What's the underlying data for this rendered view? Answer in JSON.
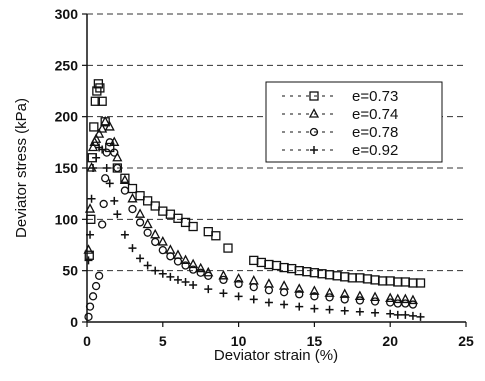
{
  "chart_data": {
    "type": "scatter",
    "xlabel": "Deviator strain (%)",
    "ylabel": "Deviator stress (kPa)",
    "xlim": [
      0,
      25
    ],
    "ylim": [
      0,
      300
    ],
    "xticks": [
      "0",
      "5",
      "10",
      "15",
      "20",
      "25"
    ],
    "yticks": [
      "0",
      "50",
      "100",
      "150",
      "200",
      "250",
      "300"
    ],
    "grid": "horizontal dashed",
    "legend_position": "top-right",
    "colors": {
      "marker": "#111111",
      "axis": "#111111",
      "grid": "#333333"
    },
    "series": [
      {
        "name": "e=0.73",
        "marker": "square",
        "x": [
          0.15,
          0.25,
          0.35,
          0.45,
          0.55,
          0.65,
          0.75,
          0.85,
          1.0,
          1.2,
          1.5,
          2.0,
          2.5,
          3.0,
          3.5,
          4.0,
          4.5,
          5.0,
          5.5,
          6.0,
          6.5,
          7.0,
          8.0,
          8.5,
          9.3,
          11.0,
          11.5,
          12.0,
          12.5,
          13.0,
          13.5,
          14.0,
          14.5,
          15.0,
          15.5,
          16.0,
          16.5,
          17.0,
          17.5,
          18.0,
          18.5,
          19.0,
          19.5,
          20.0,
          20.5,
          21.0,
          21.5,
          22.0
        ],
        "y": [
          65,
          100,
          160,
          190,
          215,
          225,
          232,
          228,
          215,
          195,
          170,
          150,
          140,
          130,
          123,
          118,
          113,
          108,
          105,
          101,
          97,
          93,
          88,
          84,
          72,
          60,
          58,
          56,
          55,
          53,
          52,
          50,
          49,
          48,
          47,
          46,
          45,
          44,
          43,
          43,
          42,
          41,
          40,
          40,
          39,
          39,
          38,
          38
        ]
      },
      {
        "name": "e=0.74",
        "marker": "triangle",
        "x": [
          0.1,
          0.2,
          0.3,
          0.4,
          0.5,
          0.6,
          0.8,
          1.0,
          1.2,
          1.5,
          1.8,
          2.0,
          2.5,
          3.0,
          3.5,
          4.0,
          4.5,
          5.0,
          5.5,
          6.0,
          6.5,
          7.0,
          7.5,
          8.0,
          9.0,
          10.0,
          11.0,
          12.0,
          13.0,
          14.0,
          15.0,
          16.0,
          17.0,
          18.0,
          19.0,
          20.0,
          20.5,
          21.0,
          21.5
        ],
        "y": [
          70,
          110,
          150,
          170,
          175,
          178,
          183,
          188,
          195,
          190,
          175,
          160,
          138,
          120,
          105,
          95,
          85,
          78,
          70,
          65,
          60,
          56,
          52,
          48,
          45,
          42,
          40,
          37,
          35,
          32,
          30,
          28,
          27,
          25,
          24,
          23,
          22,
          22,
          21
        ]
      },
      {
        "name": "e=0.78",
        "marker": "circle",
        "x": [
          0.1,
          0.2,
          0.4,
          0.6,
          0.8,
          1.0,
          1.1,
          1.2,
          1.3,
          1.5,
          1.8,
          2.0,
          2.5,
          3.0,
          3.5,
          4.0,
          4.5,
          5.0,
          5.5,
          6.0,
          6.5,
          7.0,
          7.5,
          8.0,
          9.0,
          10.0,
          11.0,
          12.0,
          13.0,
          14.0,
          15.0,
          16.0,
          17.0,
          18.0,
          19.0,
          20.0,
          20.5,
          21.0,
          21.5
        ],
        "y": [
          5,
          15,
          25,
          35,
          45,
          95,
          115,
          140,
          165,
          175,
          165,
          150,
          128,
          110,
          97,
          87,
          78,
          70,
          64,
          59,
          55,
          51,
          48,
          45,
          41,
          37,
          34,
          31,
          29,
          27,
          25,
          24,
          22,
          21,
          20,
          19,
          18,
          18,
          17
        ]
      },
      {
        "name": "e=0.92",
        "marker": "plus",
        "x": [
          0.1,
          0.2,
          0.3,
          0.4,
          0.6,
          0.8,
          1.0,
          1.3,
          1.5,
          1.8,
          2.0,
          2.5,
          3.0,
          3.5,
          4.0,
          4.5,
          5.0,
          5.5,
          6.0,
          6.5,
          7.0,
          8.0,
          9.0,
          10.0,
          11.0,
          12.0,
          13.0,
          14.0,
          15.0,
          16.0,
          17.0,
          18.0,
          19.0,
          20.0,
          20.5,
          21.0,
          21.5,
          22.0
        ],
        "y": [
          60,
          85,
          120,
          150,
          160,
          170,
          168,
          150,
          135,
          118,
          105,
          85,
          72,
          62,
          55,
          50,
          47,
          44,
          41,
          39,
          36,
          32,
          28,
          25,
          22,
          19,
          17,
          15,
          13,
          12,
          11,
          10,
          9,
          8,
          7,
          7,
          6,
          5
        ]
      }
    ]
  }
}
